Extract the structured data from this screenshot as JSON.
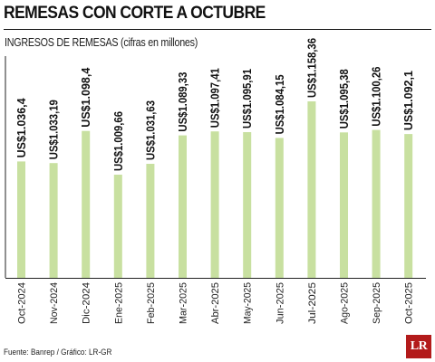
{
  "header": {
    "title": "REMESAS CON CORTE A OCTUBRE",
    "subtitle": "INGRESOS DE REMESAS (cifras en millones)"
  },
  "footer": {
    "source": "Fuente: Banrep / Gráfico: LR-GR",
    "logo_text": "LR"
  },
  "colors": {
    "bar": "#c8e0a0",
    "axis": "#222222",
    "logo": "#b31b1b"
  },
  "chart_data": {
    "type": "bar",
    "title": "INGRESOS DE REMESAS (cifras en millones)",
    "categories": [
      "Oct-2024",
      "Nov-2024",
      "Dic-2024",
      "Ene-2025",
      "Feb-2025",
      "Mar-2025",
      "Abr-2025",
      "May-2025",
      "Jun-2025",
      "Jul-2025",
      "Ago-2025",
      "Sep-2025",
      "Oct-2025"
    ],
    "values": [
      1036.4,
      1033.19,
      1098.4,
      1009.66,
      1031.63,
      1089.33,
      1097.41,
      1095.91,
      1084.15,
      1158.36,
      1095.38,
      1100.26,
      1092.1
    ],
    "labels": [
      "US$1.036,4",
      "US$1.033,19",
      "US$1.098,4",
      "US$1.009,66",
      "US$1.031,63",
      "US$1.089,33",
      "US$1.097,41",
      "US$1.095,91",
      "US$1.084,15",
      "US$1.158,36",
      "US$1.095,38",
      "US$1.100,26",
      "US$1.092,1"
    ],
    "unit": "millones",
    "grid": false,
    "legend": "none"
  }
}
